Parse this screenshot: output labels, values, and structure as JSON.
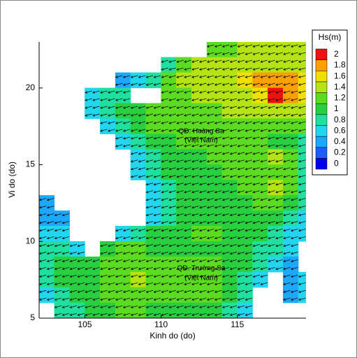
{
  "chart_data": {
    "type": "contour",
    "xlabel": "Kinh do (do)",
    "ylabel": "Vi do (do)",
    "xlim": [
      102,
      119.5
    ],
    "ylim": [
      5,
      23
    ],
    "xticks": [
      105,
      110,
      115
    ],
    "yticks": [
      5,
      10,
      15,
      20
    ],
    "colorbar": {
      "title": "Hs(m)",
      "levels": [
        0,
        0.2,
        0.4,
        0.6,
        0.8,
        1,
        1.2,
        1.4,
        1.6,
        1.8,
        2
      ],
      "colors": [
        "#0000f0",
        "#1e5cff",
        "#1ca8ff",
        "#22d6f0",
        "#20e0a0",
        "#28d040",
        "#5cdc20",
        "#b4e414",
        "#f0e000",
        "#ffa000",
        "#f01010"
      ]
    },
    "annotations": [
      "QĐ. Hoàng Sa",
      "(Việt Nam)",
      "QĐ. Trường Sa",
      "(Việt Nam)"
    ],
    "wave_direction": 195,
    "x": [
      102.5,
      103.5,
      104.5,
      105.5,
      106.5,
      107.5,
      108.5,
      109.5,
      110.5,
      111.5,
      112.5,
      113.5,
      114.5,
      115.5,
      116.5,
      117.5,
      118.5,
      119.5
    ],
    "y": [
      22.5,
      21.5,
      20.5,
      19.5,
      18.5,
      17.5,
      16.5,
      15.5,
      14.5,
      13.5,
      12.5,
      11.5,
      10.5,
      9.5,
      8.5,
      7.5,
      6.5,
      5.5
    ],
    "hs": [
      [
        null,
        null,
        null,
        null,
        null,
        null,
        null,
        null,
        null,
        null,
        null,
        1.2,
        1.2,
        1.3,
        1.3,
        1.3,
        1.3,
        1.3
      ],
      [
        null,
        null,
        null,
        null,
        null,
        null,
        null,
        null,
        0.9,
        1.2,
        1.3,
        1.3,
        1.4,
        1.4,
        1.5,
        1.5,
        1.5,
        1.4
      ],
      [
        null,
        null,
        null,
        null,
        null,
        0.4,
        0.6,
        0.8,
        1.1,
        1.3,
        1.3,
        1.4,
        1.5,
        1.6,
        1.8,
        1.9,
        1.8,
        1.6
      ],
      [
        null,
        null,
        null,
        0.6,
        0.8,
        0.9,
        null,
        null,
        1.1,
        1.2,
        1.3,
        1.3,
        1.4,
        1.5,
        1.7,
        2.0,
        1.8,
        1.6
      ],
      [
        null,
        null,
        null,
        0.6,
        0.9,
        1.0,
        1.0,
        1.1,
        1.2,
        1.2,
        1.2,
        1.2,
        1.3,
        1.4,
        1.5,
        1.5,
        1.4,
        1.3
      ],
      [
        null,
        null,
        null,
        null,
        0.7,
        0.9,
        1.0,
        1.1,
        1.1,
        1.2,
        1.1,
        1.1,
        1.2,
        1.2,
        1.2,
        1.2,
        1.2,
        1.1
      ],
      [
        null,
        null,
        null,
        null,
        null,
        0.7,
        0.9,
        1.0,
        1.0,
        1.1,
        1.1,
        1.1,
        1.1,
        1.1,
        1.1,
        1.0,
        1.0,
        0.9
      ],
      [
        null,
        null,
        null,
        null,
        null,
        null,
        0.7,
        0.9,
        1.0,
        1.0,
        1.0,
        1.1,
        1.1,
        1.1,
        1.2,
        1.3,
        1.1,
        0.9
      ],
      [
        null,
        null,
        null,
        null,
        null,
        null,
        0.6,
        0.8,
        1.0,
        1.0,
        1.0,
        1.0,
        1.1,
        1.1,
        1.2,
        1.2,
        1.1,
        0.9
      ],
      [
        null,
        null,
        null,
        null,
        null,
        null,
        null,
        0.6,
        0.9,
        1.0,
        1.0,
        1.0,
        1.0,
        1.1,
        1.2,
        1.3,
        1.1,
        0.9
      ],
      [
        0.4,
        null,
        null,
        null,
        null,
        null,
        null,
        0.6,
        0.8,
        1.0,
        1.0,
        1.0,
        1.0,
        1.0,
        1.1,
        1.1,
        1.0,
        0.8
      ],
      [
        0.4,
        0.5,
        null,
        null,
        null,
        null,
        null,
        0.7,
        0.9,
        1.0,
        1.0,
        1.0,
        1.0,
        1.0,
        1.0,
        1.0,
        0.8,
        0.6
      ],
      [
        0.6,
        0.6,
        null,
        null,
        null,
        0.7,
        0.9,
        1.0,
        1.0,
        1.0,
        1.1,
        1.1,
        1.0,
        1.0,
        1.0,
        0.9,
        0.6,
        0.6
      ],
      [
        0.8,
        0.8,
        0.6,
        null,
        1.0,
        1.1,
        1.1,
        1.0,
        1.0,
        1.0,
        1.0,
        1.0,
        1.0,
        1.0,
        0.9,
        0.9,
        0.6,
        null
      ],
      [
        0.9,
        1.0,
        1.0,
        1.0,
        1.1,
        1.2,
        1.2,
        1.2,
        1.1,
        1.1,
        1.1,
        1.1,
        1.0,
        1.0,
        0.8,
        0.6,
        0.5,
        null
      ],
      [
        0.9,
        1.0,
        1.0,
        1.0,
        1.1,
        1.2,
        1.3,
        1.2,
        1.1,
        1.1,
        1.2,
        1.1,
        1.0,
        0.9,
        0.7,
        null,
        0.5,
        0.6
      ],
      [
        0.7,
        0.9,
        1.0,
        1.0,
        1.1,
        1.2,
        1.2,
        1.1,
        1.1,
        1.1,
        1.2,
        1.1,
        1.0,
        0.8,
        null,
        null,
        0.5,
        0.6
      ],
      [
        null,
        0.8,
        0.9,
        1.0,
        1.0,
        1.1,
        1.1,
        1.0,
        1.0,
        1.0,
        1.0,
        1.0,
        0.9,
        0.7,
        null,
        null,
        null,
        null
      ]
    ]
  }
}
